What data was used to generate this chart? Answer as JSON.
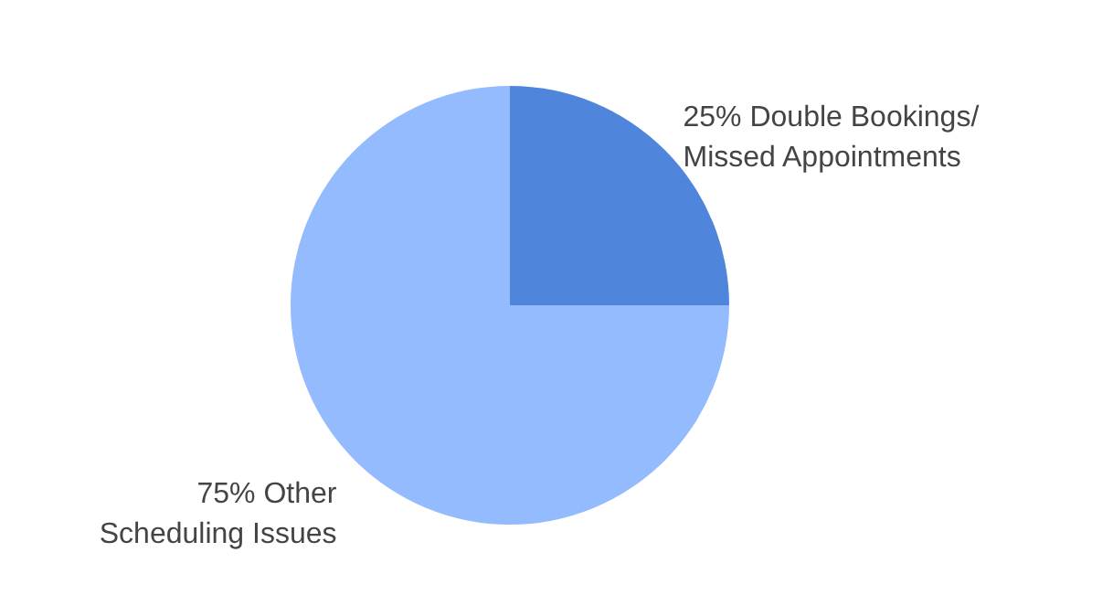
{
  "chart_data": {
    "type": "pie",
    "categories": [
      "25% Double Bookings/ Missed Appointments",
      "75% Other Scheduling Issues"
    ],
    "values": [
      25,
      75
    ],
    "colors": [
      "#4f86dc",
      "#93bbfd"
    ]
  }
}
